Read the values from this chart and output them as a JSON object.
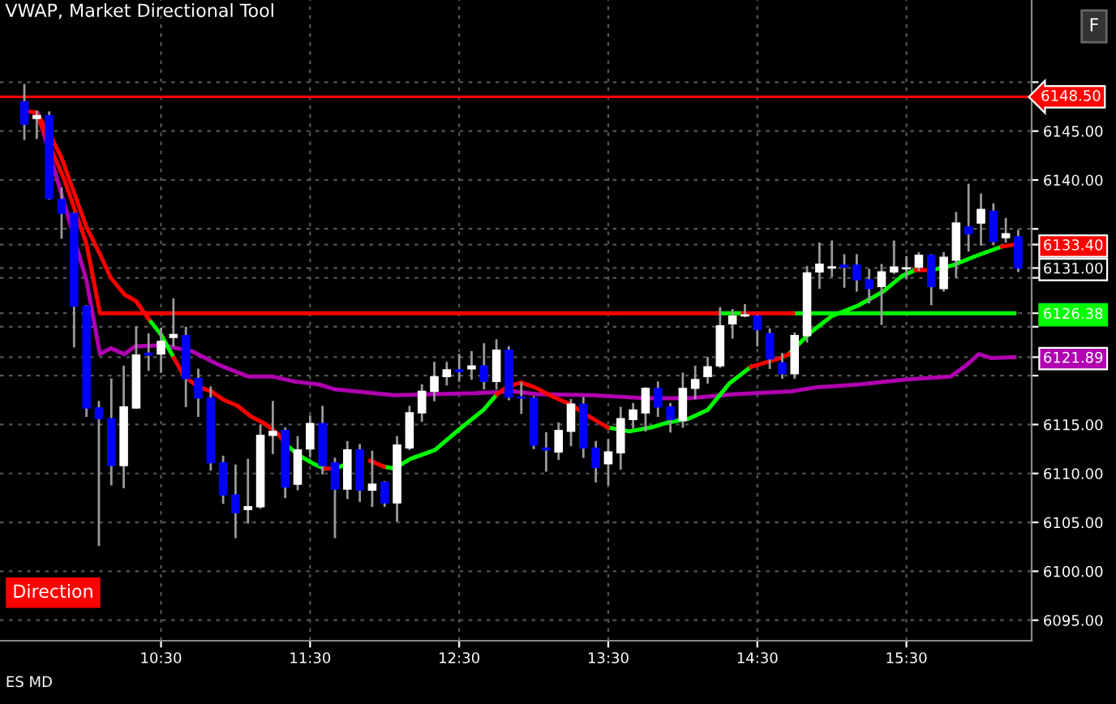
{
  "chart_data": {
    "type": "candlestick",
    "title": "VWAP, Market Directional Tool",
    "x": [
      9.5833,
      9.6667,
      9.75,
      9.8333,
      9.9167,
      10,
      10.0833,
      10.1667,
      10.25,
      10.3333,
      10.4167,
      10.5,
      10.5833,
      10.6667,
      10.75,
      10.8333,
      10.9167,
      11,
      11.0833,
      11.1667,
      11.25,
      11.3333,
      11.4167,
      11.5,
      11.5833,
      11.6667,
      11.75,
      11.8333,
      11.9167,
      12,
      12.0833,
      12.1667,
      12.25,
      12.3333,
      12.4167,
      12.5,
      12.5833,
      12.6667,
      12.75,
      12.8333,
      12.9167,
      13,
      13.0833,
      13.1667,
      13.25,
      13.3333,
      13.4167,
      13.5,
      13.5833,
      13.6667,
      13.75,
      13.8333,
      13.9167,
      14,
      14.0833,
      14.1667,
      14.25,
      14.3333,
      14.4167,
      14.5,
      14.5833,
      14.6667,
      14.75,
      14.8333,
      14.9167,
      15,
      15.0833,
      15.1667,
      15.25,
      15.3333,
      15.4167,
      15.5,
      15.5833,
      15.6667,
      15.75,
      15.8333,
      15.9167,
      16,
      16.0833,
      16.1667,
      16.25
    ],
    "ohlc": [
      [
        6148.0,
        6149.7,
        6144.2,
        6145.7
      ],
      [
        6146.3,
        6147.0,
        6144.3,
        6146.6
      ],
      [
        6146.6,
        6146.9,
        6138.1,
        6138.1
      ],
      [
        6138.0,
        6139.1,
        6134.1,
        6136.6
      ],
      [
        6136.6,
        6136.6,
        6123.0,
        6127.1
      ],
      [
        6127.1,
        6127.1,
        6115.9,
        6116.7
      ],
      [
        6116.7,
        6117.3,
        6102.7,
        6115.6
      ],
      [
        6115.6,
        6119.6,
        6108.9,
        6110.8
      ],
      [
        6110.8,
        6120.9,
        6108.6,
        6116.8
      ],
      [
        6116.7,
        6124.9,
        6116.7,
        6122.1
      ],
      [
        6122.3,
        6124.2,
        6120.6,
        6122.1
      ],
      [
        6122.2,
        6124.8,
        6120.4,
        6123.5
      ],
      [
        6123.9,
        6127.8,
        6123.1,
        6124.2
      ],
      [
        6124.1,
        6124.9,
        6116.9,
        6119.7
      ],
      [
        6119.7,
        6120.6,
        6115.9,
        6117.7
      ],
      [
        6117.7,
        6118.8,
        6110.4,
        6111.1
      ],
      [
        6111.1,
        6111.7,
        6107.0,
        6107.8
      ],
      [
        6107.8,
        6110.8,
        6103.5,
        6106.0
      ],
      [
        6106.3,
        6111.4,
        6105.0,
        6106.6
      ],
      [
        6106.6,
        6114.9,
        6106.5,
        6113.9
      ],
      [
        6113.9,
        6117.3,
        6112.1,
        6114.3
      ],
      [
        6114.4,
        6114.6,
        6107.6,
        6108.6
      ],
      [
        6108.9,
        6113.7,
        6108.4,
        6112.4
      ],
      [
        6112.5,
        6115.8,
        6111.8,
        6115.1
      ],
      [
        6115.1,
        6116.8,
        6110.0,
        6110.8
      ],
      [
        6111.1,
        6111.5,
        6103.5,
        6108.4
      ],
      [
        6108.4,
        6113.2,
        6107.5,
        6112.4
      ],
      [
        6112.4,
        6112.9,
        6107.2,
        6108.3
      ],
      [
        6108.3,
        6112.2,
        6106.7,
        6108.9
      ],
      [
        6109.1,
        6109.1,
        6106.7,
        6107.0
      ],
      [
        6107.0,
        6113.7,
        6105.2,
        6112.9
      ],
      [
        6112.6,
        6116.8,
        6112.5,
        6116.2
      ],
      [
        6116.2,
        6119.0,
        6115.4,
        6118.4
      ],
      [
        6118.4,
        6121.3,
        6117.5,
        6119.9
      ],
      [
        6119.9,
        6121.3,
        6119.1,
        6120.6
      ],
      [
        6120.6,
        6122.1,
        6119.5,
        6120.4
      ],
      [
        6120.7,
        6122.4,
        6119.7,
        6121.0
      ],
      [
        6121.0,
        6123.2,
        6118.7,
        6119.4
      ],
      [
        6119.4,
        6123.6,
        6118.7,
        6122.6
      ],
      [
        6122.6,
        6122.9,
        6117.6,
        6117.8
      ],
      [
        6117.8,
        6119.2,
        6116.2,
        6117.7
      ],
      [
        6117.7,
        6117.8,
        6112.6,
        6112.9
      ],
      [
        6112.6,
        6114.1,
        6110.3,
        6112.4
      ],
      [
        6112.2,
        6115.1,
        6111.5,
        6114.4
      ],
      [
        6114.3,
        6117.5,
        6112.9,
        6117.1
      ],
      [
        6117.1,
        6117.7,
        6111.7,
        6112.6
      ],
      [
        6112.6,
        6113.2,
        6109.2,
        6110.6
      ],
      [
        6111.0,
        6113.4,
        6108.9,
        6112.2
      ],
      [
        6112.1,
        6116.7,
        6110.5,
        6115.6
      ],
      [
        6115.5,
        6117.1,
        6114.7,
        6116.5
      ],
      [
        6116.2,
        6118.7,
        6114.4,
        6118.7
      ],
      [
        6118.7,
        6119.3,
        6115.9,
        6116.8
      ],
      [
        6116.8,
        6117.1,
        6114.3,
        6115.5
      ],
      [
        6115.4,
        6120.2,
        6114.8,
        6118.7
      ],
      [
        6118.7,
        6120.9,
        6117.7,
        6119.6
      ],
      [
        6119.9,
        6121.8,
        6119.3,
        6120.9
      ],
      [
        6121.0,
        6126.9,
        6120.9,
        6125.1
      ],
      [
        6125.3,
        6126.7,
        6123.9,
        6126.1
      ],
      [
        6126.1,
        6127.2,
        6126.1,
        6126.2
      ],
      [
        6126.1,
        6126.1,
        6123.1,
        6124.7
      ],
      [
        6124.3,
        6124.7,
        6120.8,
        6121.7
      ],
      [
        6121.3,
        6122.2,
        6119.8,
        6120.2
      ],
      [
        6120.2,
        6124.3,
        6119.8,
        6124.1
      ],
      [
        6124.1,
        6131.1,
        6123.5,
        6130.5
      ],
      [
        6130.6,
        6133.5,
        6129.0,
        6131.4
      ],
      [
        6131.0,
        6133.7,
        6130.2,
        6131.1
      ],
      [
        6131.3,
        6132.3,
        6129.1,
        6131.1
      ],
      [
        6131.3,
        6132.3,
        6128.7,
        6129.8
      ],
      [
        6129.8,
        6130.8,
        6127.5,
        6128.9
      ],
      [
        6129.1,
        6131.3,
        6125.3,
        6130.6
      ],
      [
        6130.6,
        6133.7,
        6130.5,
        6131.1
      ],
      [
        6130.9,
        6132.1,
        6130.0,
        6131.0
      ],
      [
        6131.1,
        6132.5,
        6130.8,
        6132.3
      ],
      [
        6132.3,
        6132.3,
        6127.3,
        6129.1
      ],
      [
        6128.9,
        6132.5,
        6128.7,
        6132.1
      ],
      [
        6131.8,
        6136.6,
        6130.1,
        6135.6
      ],
      [
        6135.2,
        6139.5,
        6132.8,
        6134.5
      ],
      [
        6135.6,
        6138.5,
        6133.4,
        6137.0
      ],
      [
        6136.8,
        6137.5,
        6133.5,
        6133.7
      ],
      [
        6134.1,
        6136.0,
        6133.7,
        6134.5
      ],
      [
        6134.2,
        6134.8,
        6130.7,
        6131.0
      ]
    ],
    "colors": [
      "#0000ff",
      "#ffffff",
      "#0000ff",
      "#0000ff",
      "#0000ff",
      "#0000ff",
      "#0000ff",
      "#0000ff",
      "#ffffff",
      "#ffffff",
      "#0000ff",
      "#ffffff",
      "#ffffff",
      "#0000ff",
      "#0000ff",
      "#0000ff",
      "#0000ff",
      "#0000ff",
      "#ffffff",
      "#ffffff",
      "#ffffff",
      "#0000ff",
      "#ffffff",
      "#ffffff",
      "#0000ff",
      "#0000ff",
      "#ffffff",
      "#0000ff",
      "#ffffff",
      "#0000ff",
      "#ffffff",
      "#ffffff",
      "#ffffff",
      "#ffffff",
      "#ffffff",
      "#0000ff",
      "#ffffff",
      "#0000ff",
      "#ffffff",
      "#0000ff",
      "#0000ff",
      "#0000ff",
      "#0000ff",
      "#ffffff",
      "#ffffff",
      "#0000ff",
      "#0000ff",
      "#ffffff",
      "#ffffff",
      "#ffffff",
      "#ffffff",
      "#0000ff",
      "#0000ff",
      "#ffffff",
      "#ffffff",
      "#ffffff",
      "#ffffff",
      "#ffffff",
      "#ffffff",
      "#0000ff",
      "#0000ff",
      "#0000ff",
      "#ffffff",
      "#ffffff",
      "#ffffff",
      "#ffffff",
      "#0000ff",
      "#0000ff",
      "#0000ff",
      "#ffffff",
      "#ffffff",
      "#ffffff",
      "#ffffff",
      "#0000ff",
      "#ffffff",
      "#ffffff",
      "#0000ff",
      "#ffffff",
      "#0000ff",
      "#ffffff",
      "#0000ff"
    ],
    "series": [
      {
        "type": "line",
        "color": "#b000b0",
        "x": [
          9.674,
          9.855,
          10.0,
          10.091,
          10.163,
          10.254,
          10.326,
          10.508,
          10.707,
          10.888,
          11.087,
          11.25,
          11.396,
          11.559,
          11.667,
          12.065,
          12.32,
          12.609,
          12.863,
          13.026,
          13.388,
          13.75,
          14.04,
          14.348,
          14.728,
          14.891,
          15.181,
          15.489,
          15.797,
          15.905,
          15.985,
          16.068,
          16.225
        ],
        "values": [
          6146.8,
          6137.4,
          6129.7,
          6122.2,
          6122.8,
          6122.2,
          6123.0,
          6123.1,
          6122.5,
          6121.1,
          6119.9,
          6119.9,
          6119.4,
          6119.1,
          6118.6,
          6118.0,
          6118.1,
          6118.2,
          6118.4,
          6118.1,
          6118.0,
          6117.7,
          6117.7,
          6118.1,
          6118.4,
          6118.8,
          6119.1,
          6119.6,
          6119.9,
          6121.1,
          6122.2,
          6121.8,
          6121.89
        ]
      },
      {
        "type": "line",
        "color": "#00ff00",
        "x": [
          14.236,
          14.402,
          14.45,
          14.739,
          16.225
        ],
        "values": [
          6126.38,
          6126.38,
          null,
          6126.38,
          6126.38
        ]
      },
      {
        "type": "line",
        "color": "#ff0000",
        "x": [
          9.663,
          9.855,
          10.0,
          10.091,
          14.236,
          14.3,
          14.402,
          14.739
        ],
        "values": [
          6146.8,
          6139.9,
          6133.5,
          6126.38,
          6126.38,
          null,
          6126.38,
          6126.38
        ]
      },
      {
        "type": "line",
        "color": "#00ff00",
        "x": [
          10.417,
          10.5,
          10.587,
          10.652,
          11.341,
          11.432,
          11.522,
          11.595,
          11.63,
          11.667,
          11.737,
          11.903,
          11.995,
          12.065,
          12.174,
          12.337,
          12.5,
          12.663,
          12.754,
          12.826,
          13.497,
          13.641,
          13.787,
          13.896,
          14.04,
          14.167,
          14.312,
          14.457,
          14.657,
          14.711,
          14.856,
          15.0,
          15.181,
          15.345,
          15.472,
          15.562,
          15.6,
          15.671,
          15.815,
          15.96,
          16.141
        ],
        "values": [
          6125.8,
          6124.2,
          6121.8,
          null,
          6112.9,
          6111.8,
          6111.0,
          6110.5,
          null,
          6110.5,
          6110.9,
          null,
          6110.7,
          6110.5,
          6111.5,
          6112.4,
          6114.5,
          6116.5,
          6118.1,
          null,
          6114.7,
          6114.3,
          6114.7,
          6115.2,
          6115.6,
          6116.5,
          6119.2,
          6120.9,
          null,
          6122.2,
          6124.4,
          6126.1,
          6127.2,
          6128.6,
          6130.2,
          6130.8,
          null,
          6130.8,
          6131.3,
          6132.2,
          6133.2
        ]
      },
      {
        "type": "line",
        "color": "#ff0000",
        "x": [
          9.602,
          9.663,
          9.758,
          9.837,
          9.91,
          10.0,
          10.091,
          10.163,
          10.254,
          10.334,
          10.417,
          10.5,
          10.587,
          10.652,
          10.743,
          10.834,
          10.924,
          11.015,
          11.105,
          11.196,
          11.287,
          11.341,
          11.432,
          11.595,
          11.667,
          11.7,
          11.737,
          11.903,
          11.995,
          12.065,
          12.754,
          12.826,
          12.917,
          13.008,
          13.135,
          13.243,
          13.352,
          13.442,
          13.497,
          13.641,
          14.457,
          14.657,
          14.711,
          14.856,
          15.562,
          15.671,
          15.815,
          16.141,
          16.225
        ],
        "values": [
          6147.0,
          6146.9,
          6144.6,
          6142.1,
          6139.0,
          6135.2,
          6132.4,
          6130.0,
          6128.3,
          6127.6,
          6125.8,
          null,
          6121.8,
          6120.0,
          6118.9,
          6118.4,
          6117.5,
          6116.9,
          6115.8,
          6115.1,
          6114.0,
          6112.9,
          null,
          6110.5,
          6110.5,
          null,
          null,
          6111.3,
          6110.7,
          null,
          6118.1,
          6118.9,
          6119.3,
          6118.8,
          6117.8,
          6117.1,
          6116.0,
          6115.2,
          6114.7,
          null,
          6120.9,
          6121.8,
          6122.2,
          null,
          6130.8,
          6130.8,
          null,
          6133.2,
          6133.4
        ]
      }
    ],
    "ref_lines": [
      {
        "axis": "y",
        "value": 6148.5,
        "label": "6148.50",
        "color": "#ff0000"
      }
    ],
    "annotations": [
      "Direction",
      "ES MD",
      "F"
    ],
    "xlim": [
      9.42,
      16.34
    ],
    "xticks": [
      {
        "value": 10.5,
        "label": "10:30"
      },
      {
        "value": 11.5,
        "label": "11:30"
      },
      {
        "value": 12.5,
        "label": "12:30"
      },
      {
        "value": 13.5,
        "label": "13:30"
      },
      {
        "value": 14.5,
        "label": "14:30"
      },
      {
        "value": 15.5,
        "label": "15:30"
      }
    ],
    "ylim": [
      6092.9,
      6158.4
    ],
    "yticks": [
      {
        "value": 6095,
        "label": "6095.00"
      },
      {
        "value": 6100,
        "label": "6100.00"
      },
      {
        "value": 6105,
        "label": "6105.00"
      },
      {
        "value": 6110,
        "label": "6110.00"
      },
      {
        "value": 6115,
        "label": "6115.00"
      },
      {
        "value": 6120,
        "label": null
      },
      {
        "value": 6121.89,
        "label": "6121.89"
      },
      {
        "value": 6125,
        "label": null
      },
      {
        "value": 6126.38,
        "label": "6126.38"
      },
      {
        "value": 6130,
        "label": null
      },
      {
        "value": 6131.0,
        "label": "6131.00"
      },
      {
        "value": 6133.4,
        "label": "6133.40"
      },
      {
        "value": 6135,
        "label": null
      },
      {
        "value": 6140,
        "label": "6140.00"
      },
      {
        "value": 6145,
        "label": "6145.00"
      },
      {
        "value": 6150,
        "label": null
      }
    ],
    "grid": true
  }
}
